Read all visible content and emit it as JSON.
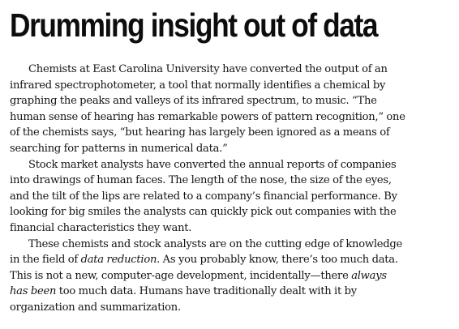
{
  "article": {
    "headline": "Drumming insight out of data",
    "paragraphs": [
      {
        "lines": [
          "Chemists at East Carolina University have converted the output of an",
          "infrared spectrophotometer, a tool that normally identifies a chemical by",
          "graphing the peaks and valleys of its infrared spectrum, to music. “The",
          "human sense of hearing has remarkable powers of pattern recognition,” one",
          "of the chemists says, “but hearing has largely been ignored as a means of",
          "searching for patterns in numerical data.”"
        ]
      },
      {
        "lines": [
          "Stock market analysts have converted the annual reports of companies",
          "into drawings of human faces. The length of the nose, the size of the eyes,",
          "and the tilt of the lips are related to a company’s financial performance. By",
          "looking for big smiles the analysts can quickly pick out companies with the",
          "financial characteristics they want."
        ]
      },
      {
        "line1": "These chemists and stock analysts are on the cutting edge of knowledge",
        "line2_before": "in the field of ",
        "line2_em": "data reduction",
        "line2_after": ". As you probably know, there’s too much data.",
        "line3_before": "This is not a new, computer-age development, incidentally—there ",
        "line3_em": "always",
        "line4_em": "has been",
        "line4_after": " too much data. Humans have traditionally dealt with it by",
        "line5": "organization and summarization."
      }
    ]
  }
}
